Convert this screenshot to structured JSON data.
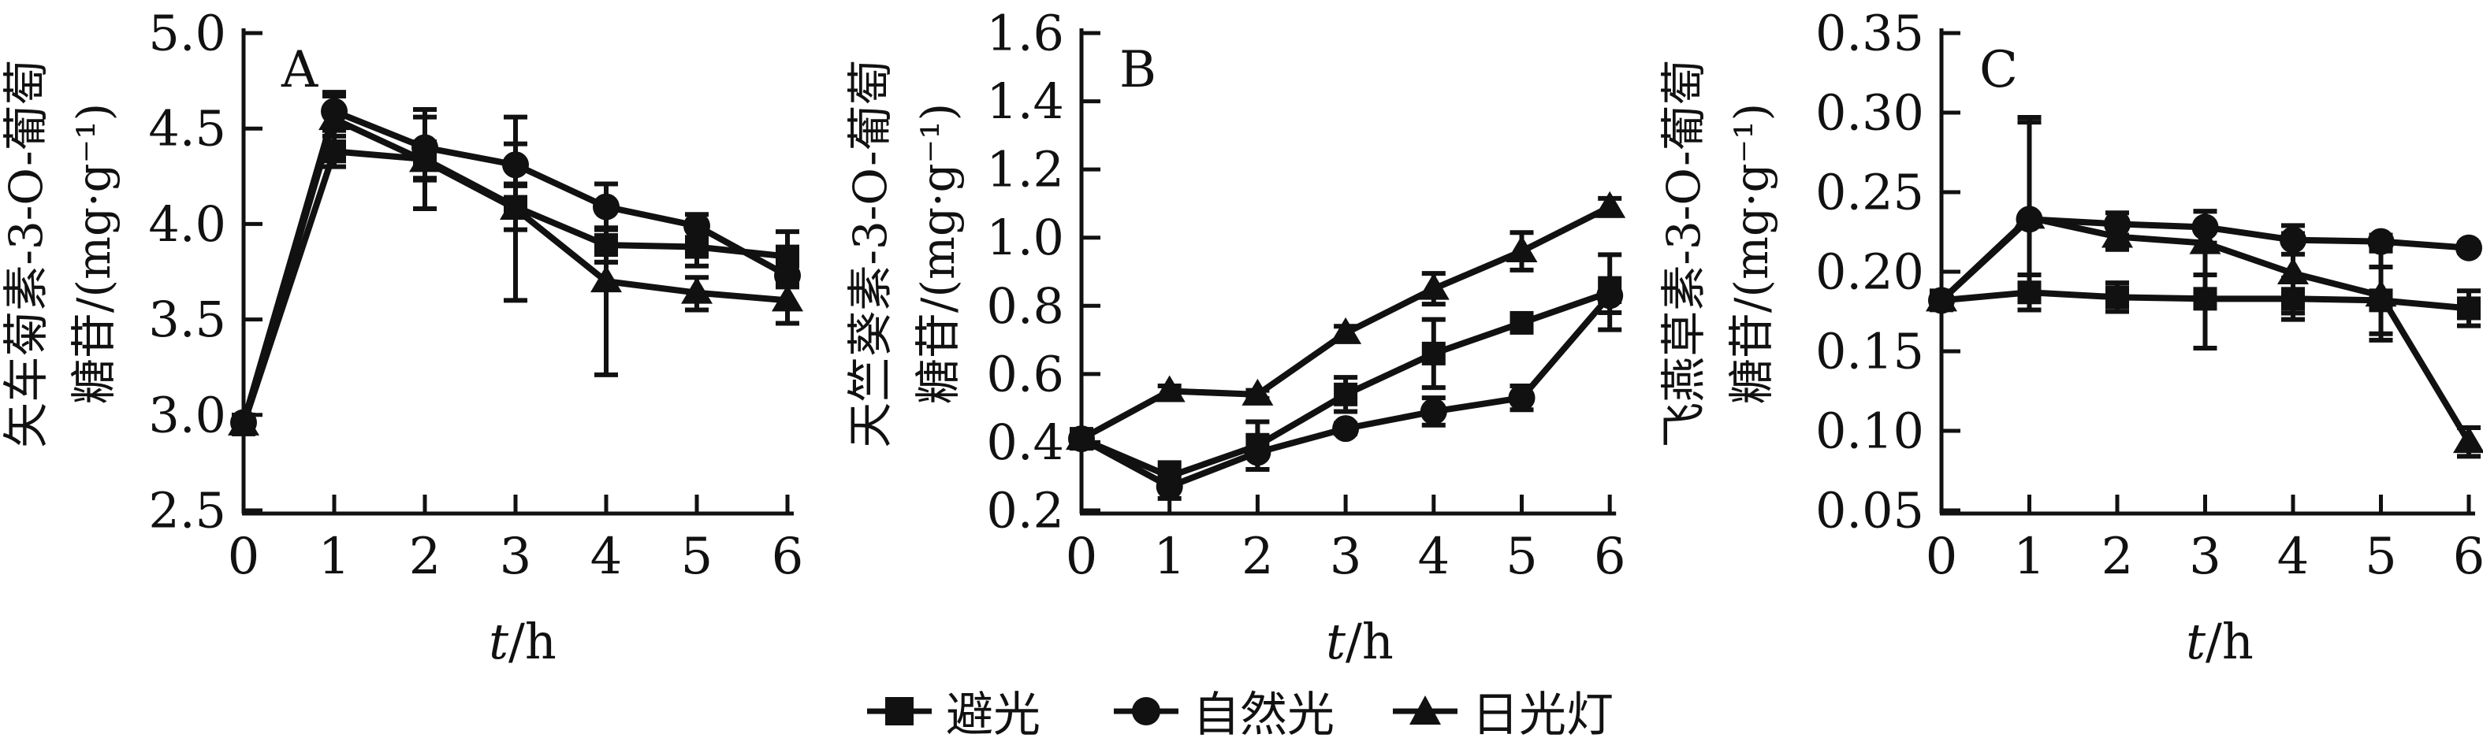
{
  "figure": {
    "background_color": "#ffffff",
    "ink_color": "#111111",
    "xlabel": {
      "variable": "t",
      "unit": "/h"
    },
    "legend": {
      "position": "bottom-center",
      "items": [
        {
          "marker": "square-icon",
          "label": "避光"
        },
        {
          "marker": "circle-icon",
          "label": "自然光"
        },
        {
          "marker": "triangle-icon",
          "label": "日光灯"
        }
      ]
    }
  },
  "chart_data": [
    {
      "type": "line",
      "panel_label": "A",
      "ylabel_line1": "矢车菊素-3-O-葡萄",
      "ylabel_line2": "糖苷/(mg·g⁻¹)",
      "ylabel_full": "矢车菊素-3-O-葡萄糖苷/(mg·g⁻¹)",
      "xlabel": "t/h",
      "x": [
        0,
        1,
        2,
        3,
        4,
        5,
        6
      ],
      "xticks": [
        "0",
        "1",
        "2",
        "3",
        "4",
        "5",
        "6"
      ],
      "ylim": [
        2.5,
        5.0
      ],
      "yticks": [
        "5.0",
        "4.5",
        "4.0",
        "3.5",
        "3.0",
        "2.5"
      ],
      "grid": false,
      "series": [
        {
          "name": "避光",
          "marker": "square",
          "values": [
            2.95,
            4.38,
            4.34,
            4.09,
            3.89,
            3.88,
            3.83
          ],
          "err_up": [
            0.03,
            0.08,
            0.26,
            0.12,
            0.09,
            0.1,
            0.13
          ],
          "err_down": [
            0.03,
            0.08,
            0.26,
            0.12,
            0.09,
            0.1,
            0.13
          ]
        },
        {
          "name": "自然光",
          "marker": "circle",
          "values": [
            2.96,
            4.59,
            4.4,
            4.31,
            4.09,
            3.99,
            3.73
          ],
          "err_up": [
            0.03,
            0.1,
            0.16,
            0.11,
            0.12,
            0.06,
            0.06
          ],
          "err_down": [
            0.03,
            0.1,
            0.16,
            0.11,
            0.12,
            0.06,
            0.06
          ]
        },
        {
          "name": "日光灯",
          "marker": "triangle",
          "values": [
            2.95,
            4.55,
            4.33,
            4.08,
            3.7,
            3.64,
            3.6
          ],
          "err_up": [
            0.03,
            0.12,
            0.1,
            0.48,
            0.1,
            0.08,
            0.08
          ],
          "err_down": [
            0.03,
            0.12,
            0.1,
            0.48,
            0.49,
            0.09,
            0.12
          ]
        }
      ]
    },
    {
      "type": "line",
      "panel_label": "B",
      "ylabel_line1": "天竺葵素-3-O-葡萄",
      "ylabel_line2": "糖苷/(mg·g⁻¹)",
      "ylabel_full": "天竺葵素-3-O-葡萄糖苷/(mg·g⁻¹)",
      "xlabel": "t/h",
      "x": [
        0,
        1,
        2,
        3,
        4,
        5,
        6
      ],
      "xticks": [
        "0",
        "1",
        "2",
        "3",
        "4",
        "5",
        "6"
      ],
      "ylim": [
        0.2,
        1.6
      ],
      "yticks": [
        "1.6",
        "1.4",
        "1.2",
        "1.0",
        "0.8",
        "0.6",
        "0.4",
        "0.2"
      ],
      "grid": false,
      "series": [
        {
          "name": "避光",
          "marker": "square",
          "values": [
            0.41,
            0.3,
            0.39,
            0.54,
            0.66,
            0.75,
            0.84
          ],
          "err_up": [
            0.01,
            0.04,
            0.07,
            0.05,
            0.1,
            0.02,
            0.11
          ],
          "err_down": [
            0.01,
            0.04,
            0.07,
            0.05,
            0.1,
            0.02,
            0.11
          ]
        },
        {
          "name": "自然光",
          "marker": "circle",
          "values": [
            0.41,
            0.27,
            0.37,
            0.44,
            0.49,
            0.53,
            0.83
          ],
          "err_up": [
            0.01,
            0.035,
            0.05,
            0.015,
            0.04,
            0.035,
            0.05
          ],
          "err_down": [
            0.01,
            0.035,
            0.05,
            0.015,
            0.04,
            0.035,
            0.05
          ]
        },
        {
          "name": "日光灯",
          "marker": "triangle",
          "values": [
            0.41,
            0.55,
            0.54,
            0.72,
            0.85,
            0.96,
            1.09
          ],
          "err_up": [
            0.01,
            0.015,
            0.012,
            0.02,
            0.045,
            0.055,
            0.025
          ],
          "err_down": [
            0.01,
            0.015,
            0.012,
            0.02,
            0.045,
            0.055,
            0.025
          ]
        }
      ]
    },
    {
      "type": "line",
      "panel_label": "C",
      "ylabel_line1": "飞燕草素-3-O-葡萄",
      "ylabel_line2": "糖苷/(mg·g⁻¹)",
      "ylabel_full": "飞燕草素-3-O-葡萄糖苷/(mg·g⁻¹)",
      "xlabel": "t/h",
      "x": [
        0,
        1,
        2,
        3,
        4,
        5,
        6
      ],
      "xticks": [
        "0",
        "1",
        "2",
        "3",
        "4",
        "5",
        "6"
      ],
      "ylim": [
        0.05,
        0.35
      ],
      "yticks": [
        "0.35",
        "0.30",
        "0.25",
        "0.20",
        "0.15",
        "0.10",
        "0.05"
      ],
      "grid": false,
      "series": [
        {
          "name": "避光",
          "marker": "square",
          "values": [
            0.182,
            0.187,
            0.184,
            0.183,
            0.183,
            0.182,
            0.177
          ],
          "err_up": [
            0.004,
            0.011,
            0.009,
            0.031,
            0.013,
            0.021,
            0.011
          ],
          "err_down": [
            0.004,
            0.011,
            0.009,
            0.031,
            0.013,
            0.021,
            0.011
          ]
        },
        {
          "name": "自然光",
          "marker": "circle",
          "values": [
            0.182,
            0.233,
            0.23,
            0.228,
            0.22,
            0.219,
            0.215
          ],
          "err_up": [
            0.004,
            0.064,
            0.007,
            0.01,
            0.009,
            0.004,
            0.003
          ],
          "err_down": [
            0.004,
            0.047,
            0.007,
            0.01,
            0.009,
            0.004,
            0.003
          ]
        },
        {
          "name": "日光灯",
          "marker": "triangle",
          "values": [
            0.182,
            0.234,
            0.222,
            0.218,
            0.199,
            0.185,
            0.093
          ],
          "err_up": [
            0.004,
            0.06,
            0.008,
            0.02,
            0.025,
            0.028,
            0.009
          ],
          "err_down": [
            0.004,
            0.05,
            0.008,
            0.02,
            0.025,
            0.028,
            0.009
          ]
        }
      ]
    }
  ]
}
